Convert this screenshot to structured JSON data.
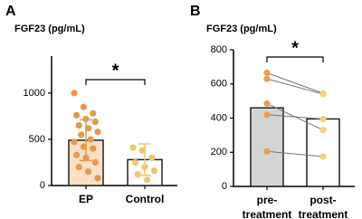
{
  "charts": [
    {
      "type": "bar",
      "panel_label": "A",
      "y_label": "FGF23 (pg/mL)",
      "categories": [
        "EP",
        "Control"
      ],
      "values": [
        490,
        280
      ],
      "error": [
        220,
        170
      ],
      "bar_colors": [
        "#f9dfc4",
        "#ffffff"
      ],
      "point_colors": [
        "#e39a4f",
        "#f0c46c"
      ],
      "points": [
        [
          1000,
          850,
          780,
          760,
          720,
          690,
          650,
          620,
          580,
          550,
          500,
          470,
          420,
          400,
          330,
          300,
          250,
          200,
          150,
          80
        ],
        [
          410,
          380,
          300,
          250,
          200,
          160,
          120,
          60
        ]
      ],
      "paired": false,
      "annotation": "*",
      "ylim": [
        0,
        1400
      ],
      "yticks": [
        0,
        500,
        1000
      ]
    },
    {
      "type": "bar",
      "panel_label": "B",
      "y_label": "FGF23 (pg/mL)",
      "categories": [
        "pre-\ntreatment",
        "post-\ntreatment"
      ],
      "values": [
        460,
        395
      ],
      "bar_colors": [
        "#d4d4d4",
        "#ffffff"
      ],
      "point_colors": [
        "#e8a050",
        "#f4d27a"
      ],
      "points": [
        [
          665,
          630,
          485,
          420,
          205
        ],
        [
          545,
          540,
          330,
          395,
          175
        ]
      ],
      "paired": true,
      "annotation": "*",
      "ylim": [
        0,
        800
      ],
      "yticks": [
        0,
        200,
        400,
        600,
        800
      ]
    }
  ]
}
